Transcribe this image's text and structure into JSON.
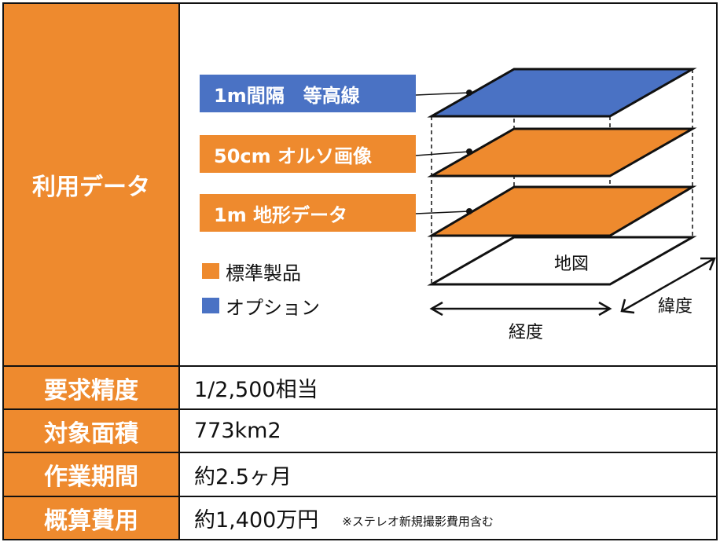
{
  "colors": {
    "orange": "#EE8A2E",
    "blue": "#4A72C4",
    "border": "#111111"
  },
  "rows": [
    {
      "header": "利用データ",
      "value": ""
    },
    {
      "header": "要求精度",
      "value": "1/2,500相当"
    },
    {
      "header": "対象面積",
      "value": "773km2"
    },
    {
      "header": "作業期間",
      "value": "約2.5ヶ月"
    },
    {
      "header": "概算費用",
      "value": "約1,400万円",
      "note": "※ステレオ新規撮影費用含む"
    }
  ],
  "diagram": {
    "layers": [
      {
        "label": "1m間隔　等高線",
        "kind": "option"
      },
      {
        "label": "50cm オルソ画像",
        "kind": "standard"
      },
      {
        "label": "1m 地形データ",
        "kind": "standard"
      }
    ],
    "base_label": "地図",
    "legend": [
      {
        "label": "標準製品",
        "kind": "standard"
      },
      {
        "label": "オプション",
        "kind": "option"
      }
    ],
    "axis_x": "経度",
    "axis_y": "緯度"
  }
}
